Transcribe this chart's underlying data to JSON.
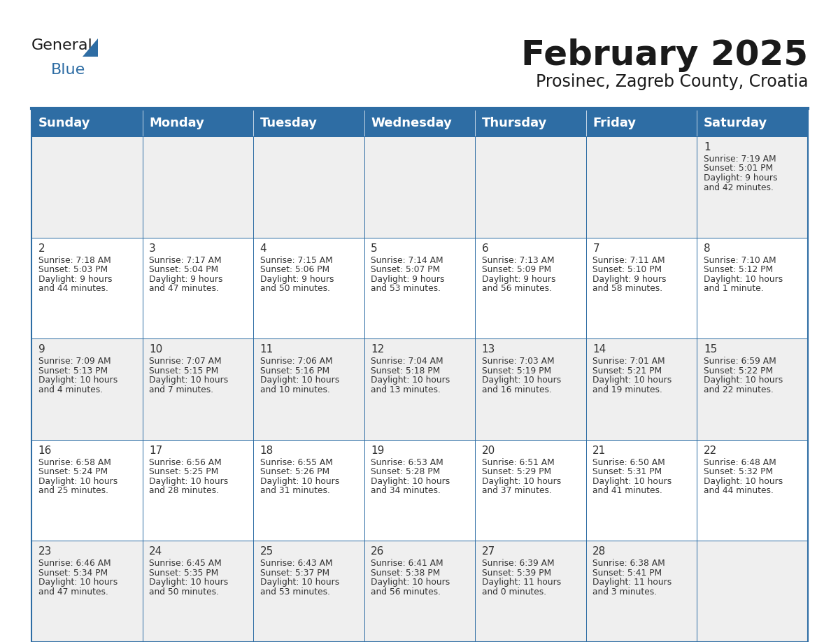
{
  "title": "February 2025",
  "subtitle": "Prosinec, Zagreb County, Croatia",
  "header_bg": "#2E6DA4",
  "header_text": "#FFFFFF",
  "cell_bg_odd": "#EFEFEF",
  "cell_bg_even": "#FFFFFF",
  "border_color": "#2E6DA4",
  "text_dark": "#1a1a1a",
  "text_cell": "#333333",
  "logo_general_color": "#1a1a1a",
  "logo_blue_color": "#2E6DA4",
  "logo_triangle_color": "#2E6DA4",
  "day_names": [
    "Sunday",
    "Monday",
    "Tuesday",
    "Wednesday",
    "Thursday",
    "Friday",
    "Saturday"
  ],
  "title_fontsize": 36,
  "subtitle_fontsize": 17,
  "header_fontsize": 13,
  "day_num_fontsize": 11,
  "info_fontsize": 8.8,
  "logo_fontsize": 16,
  "calendar_data": [
    [
      null,
      null,
      null,
      null,
      null,
      null,
      {
        "day": "1",
        "sunrise": "7:19 AM",
        "sunset": "5:01 PM",
        "daylight": "9 hours\nand 42 minutes."
      }
    ],
    [
      {
        "day": "2",
        "sunrise": "7:18 AM",
        "sunset": "5:03 PM",
        "daylight": "9 hours\nand 44 minutes."
      },
      {
        "day": "3",
        "sunrise": "7:17 AM",
        "sunset": "5:04 PM",
        "daylight": "9 hours\nand 47 minutes."
      },
      {
        "day": "4",
        "sunrise": "7:15 AM",
        "sunset": "5:06 PM",
        "daylight": "9 hours\nand 50 minutes."
      },
      {
        "day": "5",
        "sunrise": "7:14 AM",
        "sunset": "5:07 PM",
        "daylight": "9 hours\nand 53 minutes."
      },
      {
        "day": "6",
        "sunrise": "7:13 AM",
        "sunset": "5:09 PM",
        "daylight": "9 hours\nand 56 minutes."
      },
      {
        "day": "7",
        "sunrise": "7:11 AM",
        "sunset": "5:10 PM",
        "daylight": "9 hours\nand 58 minutes."
      },
      {
        "day": "8",
        "sunrise": "7:10 AM",
        "sunset": "5:12 PM",
        "daylight": "10 hours\nand 1 minute."
      }
    ],
    [
      {
        "day": "9",
        "sunrise": "7:09 AM",
        "sunset": "5:13 PM",
        "daylight": "10 hours\nand 4 minutes."
      },
      {
        "day": "10",
        "sunrise": "7:07 AM",
        "sunset": "5:15 PM",
        "daylight": "10 hours\nand 7 minutes."
      },
      {
        "day": "11",
        "sunrise": "7:06 AM",
        "sunset": "5:16 PM",
        "daylight": "10 hours\nand 10 minutes."
      },
      {
        "day": "12",
        "sunrise": "7:04 AM",
        "sunset": "5:18 PM",
        "daylight": "10 hours\nand 13 minutes."
      },
      {
        "day": "13",
        "sunrise": "7:03 AM",
        "sunset": "5:19 PM",
        "daylight": "10 hours\nand 16 minutes."
      },
      {
        "day": "14",
        "sunrise": "7:01 AM",
        "sunset": "5:21 PM",
        "daylight": "10 hours\nand 19 minutes."
      },
      {
        "day": "15",
        "sunrise": "6:59 AM",
        "sunset": "5:22 PM",
        "daylight": "10 hours\nand 22 minutes."
      }
    ],
    [
      {
        "day": "16",
        "sunrise": "6:58 AM",
        "sunset": "5:24 PM",
        "daylight": "10 hours\nand 25 minutes."
      },
      {
        "day": "17",
        "sunrise": "6:56 AM",
        "sunset": "5:25 PM",
        "daylight": "10 hours\nand 28 minutes."
      },
      {
        "day": "18",
        "sunrise": "6:55 AM",
        "sunset": "5:26 PM",
        "daylight": "10 hours\nand 31 minutes."
      },
      {
        "day": "19",
        "sunrise": "6:53 AM",
        "sunset": "5:28 PM",
        "daylight": "10 hours\nand 34 minutes."
      },
      {
        "day": "20",
        "sunrise": "6:51 AM",
        "sunset": "5:29 PM",
        "daylight": "10 hours\nand 37 minutes."
      },
      {
        "day": "21",
        "sunrise": "6:50 AM",
        "sunset": "5:31 PM",
        "daylight": "10 hours\nand 41 minutes."
      },
      {
        "day": "22",
        "sunrise": "6:48 AM",
        "sunset": "5:32 PM",
        "daylight": "10 hours\nand 44 minutes."
      }
    ],
    [
      {
        "day": "23",
        "sunrise": "6:46 AM",
        "sunset": "5:34 PM",
        "daylight": "10 hours\nand 47 minutes."
      },
      {
        "day": "24",
        "sunrise": "6:45 AM",
        "sunset": "5:35 PM",
        "daylight": "10 hours\nand 50 minutes."
      },
      {
        "day": "25",
        "sunrise": "6:43 AM",
        "sunset": "5:37 PM",
        "daylight": "10 hours\nand 53 minutes."
      },
      {
        "day": "26",
        "sunrise": "6:41 AM",
        "sunset": "5:38 PM",
        "daylight": "10 hours\nand 56 minutes."
      },
      {
        "day": "27",
        "sunrise": "6:39 AM",
        "sunset": "5:39 PM",
        "daylight": "11 hours\nand 0 minutes."
      },
      {
        "day": "28",
        "sunrise": "6:38 AM",
        "sunset": "5:41 PM",
        "daylight": "11 hours\nand 3 minutes."
      },
      null
    ]
  ]
}
